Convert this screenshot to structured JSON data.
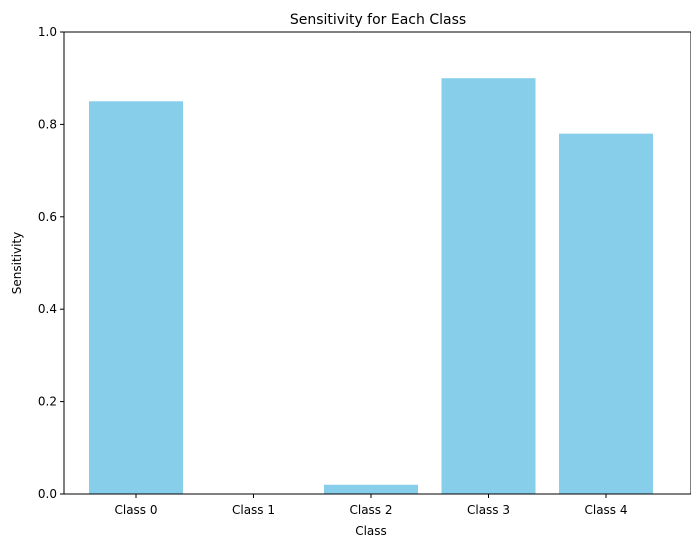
{
  "chart_data": {
    "type": "bar",
    "title": "Sensitivity for Each Class",
    "xlabel": "Class",
    "ylabel": "Sensitivity",
    "categories": [
      "Class 0",
      "Class 1",
      "Class 2",
      "Class 3",
      "Class 4"
    ],
    "values": [
      0.85,
      0.0,
      0.02,
      0.9,
      0.78
    ],
    "ylim": [
      0,
      1.0
    ],
    "yticks": [
      "0.0",
      "0.2",
      "0.4",
      "0.6",
      "0.8",
      "1.0"
    ],
    "grid": false,
    "bar_color": "#87ceeb",
    "axis_color": "#000000"
  }
}
